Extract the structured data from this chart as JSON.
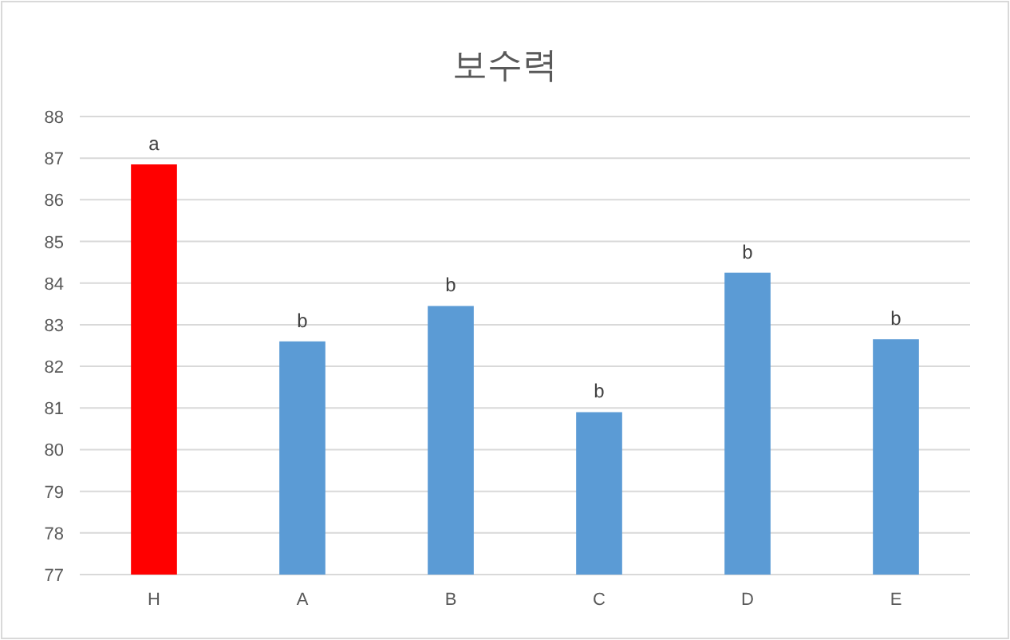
{
  "chart_data": {
    "type": "bar",
    "title": "보수력",
    "categories": [
      "H",
      "A",
      "B",
      "C",
      "D",
      "E"
    ],
    "values": [
      86.85,
      82.6,
      83.45,
      80.9,
      84.25,
      82.65
    ],
    "colors": [
      "#ff0000",
      "#5b9bd5",
      "#5b9bd5",
      "#5b9bd5",
      "#5b9bd5",
      "#5b9bd5"
    ],
    "ylim": [
      77,
      88
    ],
    "yticks": [
      77,
      78,
      79,
      80,
      81,
      82,
      83,
      84,
      85,
      86,
      87,
      88
    ],
    "grid": "y",
    "annotations": [
      {
        "text": "a",
        "x": "H",
        "y": 86.85
      },
      {
        "text": "b",
        "x": "A",
        "y": 82.6
      },
      {
        "text": "b",
        "x": "B",
        "y": 83.45
      },
      {
        "text": "b",
        "x": "C",
        "y": 80.9
      },
      {
        "text": "b",
        "x": "D",
        "y": 84.25
      },
      {
        "text": "b",
        "x": "E",
        "y": 82.65
      }
    ]
  }
}
